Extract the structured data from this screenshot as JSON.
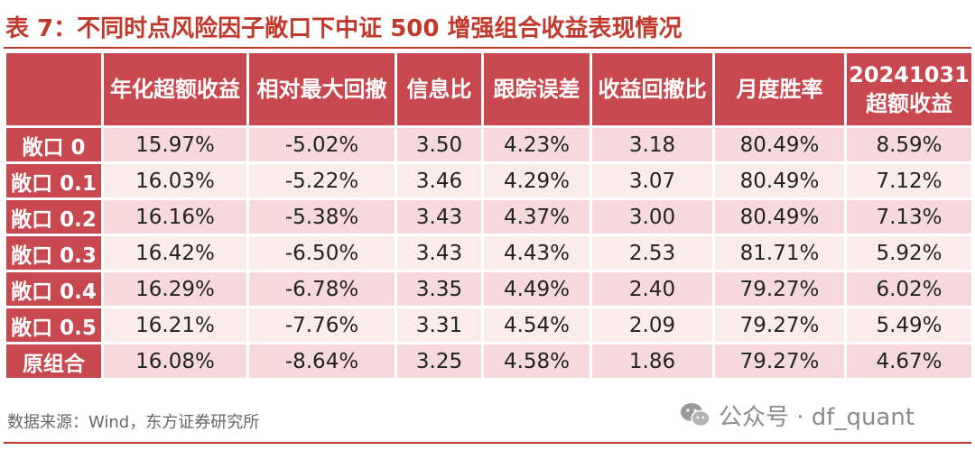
{
  "title": "表 7：不同时点风险因子敞口下中证 500 增强组合收益表现情况",
  "table": {
    "columns": [
      "",
      "年化超额收益",
      "相对最大回撤",
      "信息比",
      "跟踪误差",
      "收益回撤比",
      "月度胜率",
      "20241031\n超额收益"
    ],
    "rows": [
      {
        "label": "敞口 0",
        "cells": [
          "15.97%",
          "-5.02%",
          "3.50",
          "4.23%",
          "3.18",
          "80.49%",
          "8.59%"
        ]
      },
      {
        "label": "敞口 0.1",
        "cells": [
          "16.03%",
          "-5.22%",
          "3.46",
          "4.29%",
          "3.07",
          "80.49%",
          "7.12%"
        ]
      },
      {
        "label": "敞口 0.2",
        "cells": [
          "16.16%",
          "-5.38%",
          "3.43",
          "4.37%",
          "3.00",
          "80.49%",
          "7.13%"
        ]
      },
      {
        "label": "敞口 0.3",
        "cells": [
          "16.42%",
          "-6.50%",
          "3.43",
          "4.43%",
          "2.53",
          "81.71%",
          "5.92%"
        ]
      },
      {
        "label": "敞口 0.4",
        "cells": [
          "16.29%",
          "-6.78%",
          "3.35",
          "4.49%",
          "2.40",
          "79.27%",
          "6.02%"
        ]
      },
      {
        "label": "敞口 0.5",
        "cells": [
          "16.21%",
          "-7.76%",
          "3.31",
          "4.54%",
          "2.09",
          "79.27%",
          "5.49%"
        ]
      },
      {
        "label": "原组合",
        "cells": [
          "16.08%",
          "-8.64%",
          "3.25",
          "4.58%",
          "1.86",
          "79.27%",
          "4.67%"
        ]
      }
    ]
  },
  "source": "数据来源：Wind，东方证券研究所",
  "watermark": "公众号 · df_quant",
  "colors": {
    "accent": "#c0392b",
    "header_bg": "#c8484f",
    "row_odd": "#f6d9da",
    "row_even": "#fbecec"
  },
  "icons": {
    "watermark": "wechat-icon"
  }
}
